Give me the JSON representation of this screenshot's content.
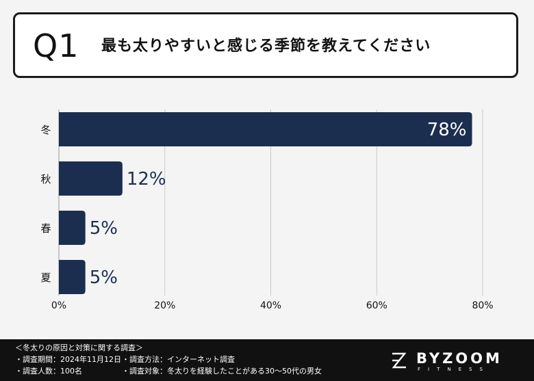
{
  "question": {
    "number": "Q1",
    "text": "最も太りやすいと感じる季節を教えてください"
  },
  "chart_data": {
    "type": "bar",
    "orientation": "horizontal",
    "categories": [
      "冬",
      "秋",
      "春",
      "夏"
    ],
    "values": [
      78,
      12,
      5,
      5
    ],
    "value_labels": [
      "78%",
      "12%",
      "5%",
      "5%"
    ],
    "xlim": [
      0,
      80
    ],
    "x_ticks": [
      "0%",
      "20%",
      "40%",
      "60%",
      "80%"
    ],
    "grid": true,
    "bar_color": "#1c2e50",
    "title": "",
    "xlabel": "",
    "ylabel": ""
  },
  "footer": {
    "survey_title": "＜冬太りの原因と対策に関する調査＞",
    "period": "・調査期間：2024年11月12日",
    "method": "・調査方法：インターネット調査",
    "respondents": "・調査人数：100名",
    "target": "・調査対象：冬太りを経験したことがある30〜50代の男女"
  },
  "brand": {
    "name": "BYZOOM",
    "sub": "FITNESS"
  }
}
